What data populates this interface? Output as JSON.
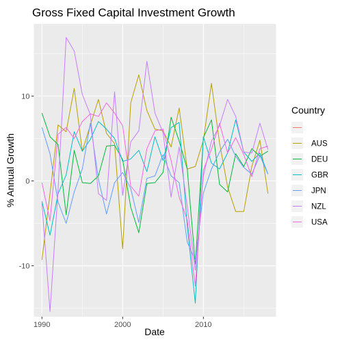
{
  "chart_data": {
    "type": "line",
    "title": "Gross Fixed Capital Investment Growth",
    "xlabel": "Date",
    "ylabel": "% Annual Growth",
    "xlim": [
      1989,
      2019
    ],
    "ylim": [
      -16,
      18.5
    ],
    "x_ticks": [
      1990,
      2000,
      2010
    ],
    "y_ticks": [
      -10,
      0,
      10
    ],
    "grid": true,
    "legend": {
      "title": "Country",
      "placement": "right"
    },
    "series": [
      {
        "name": "",
        "color": "#F8766D",
        "x": [],
        "y": []
      },
      {
        "name": "AUS",
        "color": "#B79F00",
        "x": [
          1990,
          1991,
          1992,
          1993,
          1994,
          1995,
          1996,
          1997,
          1998,
          1999,
          2000,
          2001,
          2002,
          2003,
          2004,
          2005,
          2006,
          2007,
          2008,
          2009,
          2010,
          2011,
          2012,
          2013,
          2014,
          2015,
          2016,
          2017,
          2018
        ],
        "y": [
          -9.3,
          -1.5,
          6.6,
          5.8,
          10.9,
          3.5,
          6.6,
          9.6,
          5.6,
          4.4,
          -8.0,
          9.2,
          12.5,
          8.3,
          6.1,
          5.9,
          4.0,
          8.6,
          1.4,
          1.7,
          4.8,
          11.5,
          4.5,
          -0.7,
          -3.6,
          -3.6,
          1.7,
          4.8,
          -1.5
        ]
      },
      {
        "name": "DEU",
        "color": "#00BA38",
        "x": [
          1990,
          1991,
          1992,
          1993,
          1994,
          1995,
          1996,
          1997,
          1998,
          1999,
          2000,
          2001,
          2002,
          2003,
          2004,
          2005,
          2006,
          2007,
          2008,
          2009,
          2010,
          2011,
          2012,
          2013,
          2014,
          2015,
          2016,
          2017,
          2018
        ],
        "y": [
          8.0,
          5.2,
          4.3,
          -4.0,
          3.6,
          -0.2,
          -0.3,
          0.6,
          4.1,
          4.2,
          2.5,
          -3.1,
          -6.1,
          -0.3,
          -0.2,
          1.0,
          7.5,
          4.7,
          1.4,
          -9.8,
          5.1,
          7.2,
          -0.4,
          -1.3,
          3.2,
          1.7,
          3.8,
          2.9,
          3.5
        ]
      },
      {
        "name": "GBR",
        "color": "#00BFC4",
        "x": [
          1990,
          1991,
          1992,
          1993,
          1994,
          1995,
          1996,
          1997,
          1998,
          1999,
          2000,
          2001,
          2002,
          2003,
          2004,
          2005,
          2006,
          2007,
          2008,
          2009,
          2010,
          2011,
          2012,
          2013,
          2014,
          2015,
          2016,
          2017,
          2018
        ],
        "y": [
          -2.4,
          -6.4,
          -1.5,
          0.7,
          5.8,
          3.5,
          4.9,
          7.0,
          6.1,
          5.0,
          2.3,
          2.6,
          3.6,
          1.1,
          5.2,
          2.4,
          6.3,
          6.9,
          -5.3,
          -14.4,
          5.2,
          2.1,
          1.4,
          3.3,
          7.2,
          3.4,
          2.3,
          3.3,
          0.8
        ]
      },
      {
        "name": "JPN",
        "color": "#619CFF",
        "x": [
          1990,
          1991,
          1992,
          1993,
          1994,
          1995,
          1996,
          1997,
          1998,
          1999,
          2000,
          2001,
          2002,
          2003,
          2004,
          2005,
          2006,
          2007,
          2008,
          2009,
          2010,
          2011,
          2012,
          2013,
          2014,
          2015,
          2016,
          2017,
          2018
        ],
        "y": [
          6.3,
          3.2,
          -2.5,
          -5.0,
          -1.3,
          1.4,
          6.8,
          0.2,
          -3.9,
          -0.2,
          1.0,
          -0.9,
          -4.9,
          0.3,
          0.6,
          3.1,
          0.6,
          -0.2,
          -7.2,
          -9.4,
          -1.4,
          1.4,
          3.4,
          4.9,
          2.9,
          1.6,
          0.8,
          3.0,
          0.8
        ]
      },
      {
        "name": "NZL",
        "color": "#C77CFF",
        "x": [
          1990,
          1991,
          1992,
          1993,
          1994,
          1995,
          1996,
          1997,
          1998,
          1999,
          2000,
          2001,
          2002,
          2003,
          2004,
          2005,
          2006,
          2007,
          2008,
          2009,
          2010,
          2011,
          2012,
          2013,
          2014,
          2015,
          2016,
          2017,
          2018
        ],
        "y": [
          -2.6,
          -15.4,
          -1.0,
          16.9,
          15.3,
          10.2,
          7.8,
          -1.5,
          -2.3,
          10.5,
          -1.7,
          4.6,
          5.9,
          14.1,
          8.0,
          5.7,
          -1.9,
          4.0,
          -3.0,
          -10.5,
          0.6,
          4.7,
          6.5,
          9.6,
          7.6,
          3.4,
          3.3,
          6.8,
          3.7
        ]
      },
      {
        "name": "USA",
        "color": "#F564E3",
        "x": [
          1990,
          1991,
          1992,
          1993,
          1994,
          1995,
          1996,
          1997,
          1998,
          1999,
          2000,
          2001,
          2002,
          2003,
          2004,
          2005,
          2006,
          2007,
          2008,
          2009,
          2010,
          2011,
          2012,
          2013,
          2014,
          2015,
          2016,
          2017,
          2018
        ],
        "y": [
          -0.2,
          -4.7,
          5.5,
          6.3,
          5.0,
          7.0,
          7.9,
          7.6,
          9.2,
          8.0,
          6.5,
          -0.6,
          -1.8,
          3.8,
          5.9,
          6.1,
          2.4,
          -1.9,
          -4.6,
          -12.4,
          1.3,
          3.7,
          6.8,
          3.3,
          5.1,
          3.1,
          0.5,
          3.8,
          4.1
        ]
      }
    ]
  }
}
